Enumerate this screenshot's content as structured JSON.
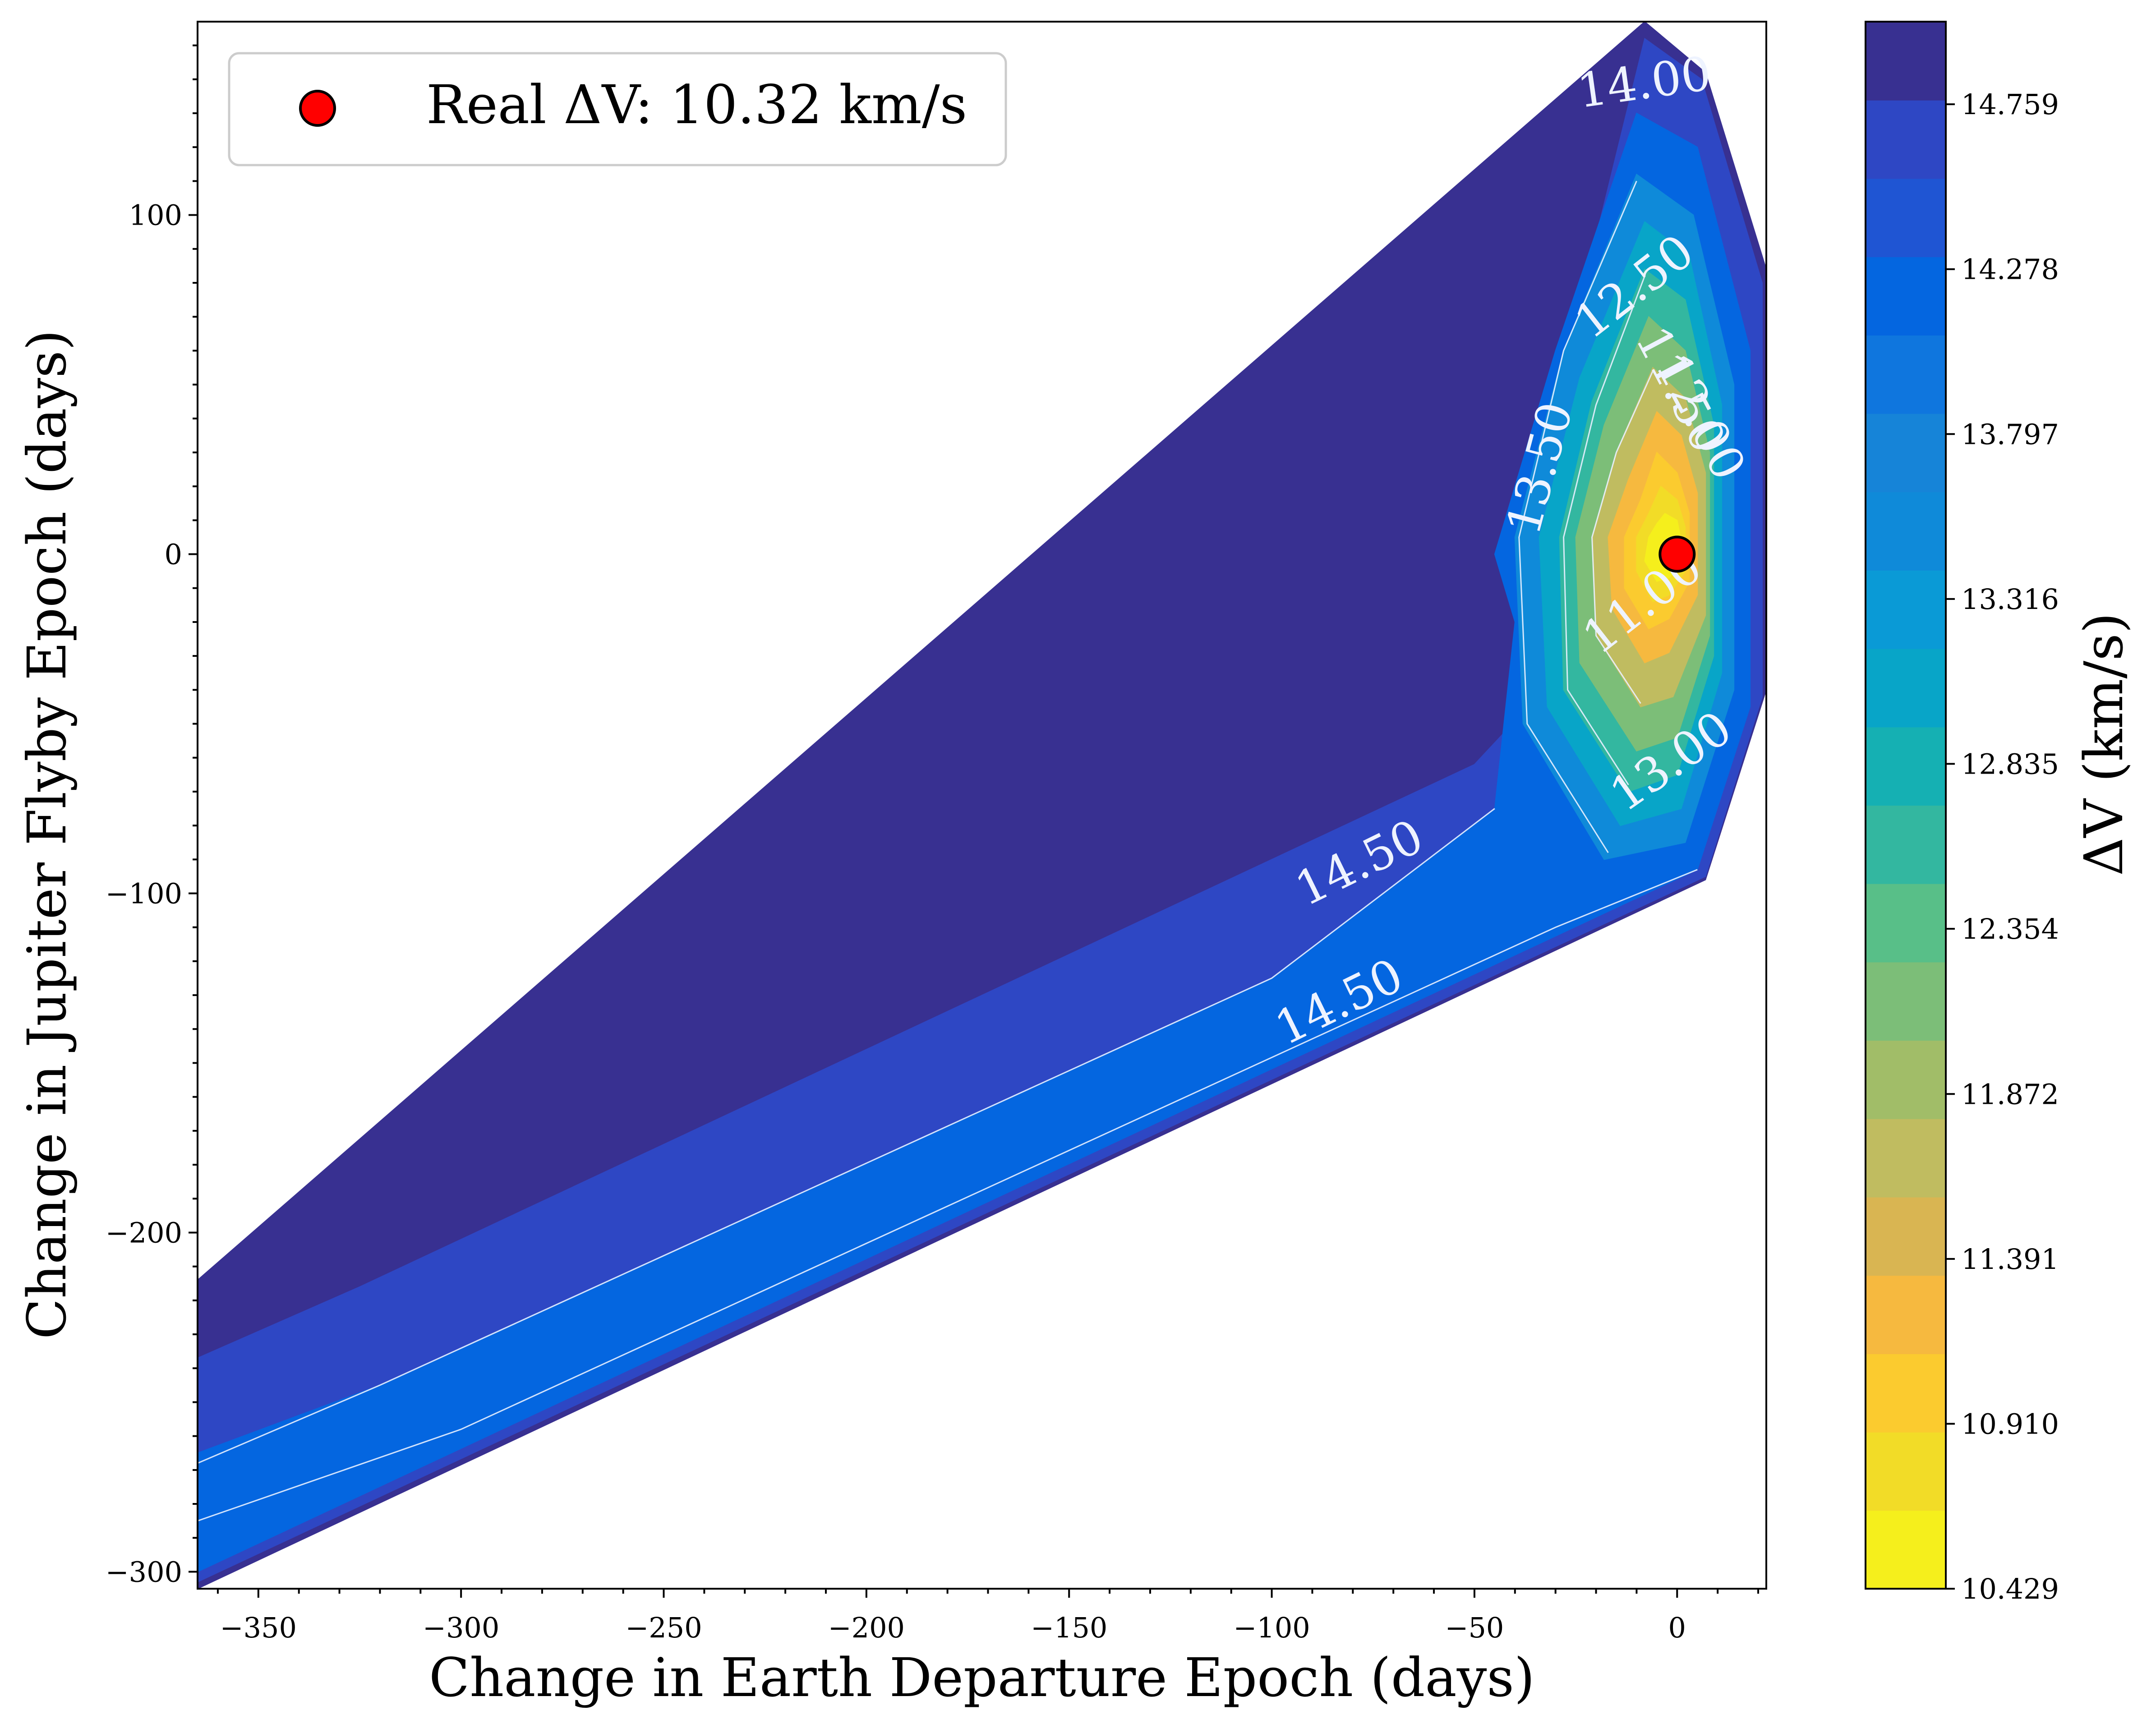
{
  "chart_data": {
    "type": "contour",
    "xlabel": "Change in Earth Departure Epoch (days)",
    "ylabel": "Change in Jupiter Flyby Epoch (days)",
    "colorbar_label": "ΔV (km/s)",
    "xlim": [
      -365,
      22
    ],
    "ylim": [
      -305,
      157
    ],
    "x_ticks": [
      -350,
      -300,
      -250,
      -200,
      -150,
      -100,
      -50,
      0
    ],
    "x_tick_labels": [
      "−350",
      "−300",
      "−250",
      "−200",
      "−150",
      "−100",
      "−50",
      "0"
    ],
    "y_ticks": [
      -300,
      -200,
      -100,
      0,
      100
    ],
    "y_tick_labels": [
      "−300",
      "−200",
      "−100",
      "0",
      "100"
    ],
    "colorbar_range": [
      10.429,
      15.0
    ],
    "colorbar_ticks": [
      10.429,
      10.91,
      11.391,
      11.872,
      12.354,
      12.835,
      13.316,
      13.797,
      14.278,
      14.759
    ],
    "colorbar_tick_labels": [
      "10.429",
      "10.910",
      "11.391",
      "11.872",
      "12.354",
      "12.835",
      "13.316",
      "13.797",
      "14.278",
      "14.759"
    ],
    "colormap": [
      "#f5ef1c",
      "#f2dc27",
      "#fbcb2f",
      "#f6b93f",
      "#d9b552",
      "#c0bc60",
      "#a1bd68",
      "#7cbe78",
      "#58bf88",
      "#33b7a0",
      "#15b0b3",
      "#08a5c8",
      "#0a9ad6",
      "#0f8ad9",
      "#1684d8",
      "#0f76de",
      "#0466e0",
      "#1f55d3",
      "#2e47c4",
      "#383091"
    ],
    "legend": {
      "label": "Real ΔV: 10.32 km/s",
      "position": "upper-left"
    },
    "real_point": {
      "x": 0,
      "y": 0,
      "value": 10.32,
      "color": "#ff0000"
    },
    "contour_levels": [
      "11.00",
      "11.50",
      "12.00",
      "12.50",
      "13.00",
      "13.50",
      "14.00",
      "14.50",
      "14.50"
    ],
    "regions": [
      {
        "level": 14.9,
        "color": "#383091",
        "polygon": [
          [
            -365,
            -305
          ],
          [
            -365,
            -214
          ],
          [
            -8,
            157
          ],
          [
            7,
            142
          ],
          [
            22,
            84
          ],
          [
            22,
            -40
          ],
          [
            7,
            -96
          ]
        ]
      },
      {
        "level": 14.7,
        "color": "#2e47c4",
        "polygon": [
          [
            -365,
            -303
          ],
          [
            -365,
            -237
          ],
          [
            -325,
            -216
          ],
          [
            -50,
            -62
          ],
          [
            -25,
            -30
          ],
          [
            -30,
            45
          ],
          [
            -8,
            152
          ],
          [
            6,
            140
          ],
          [
            21,
            80
          ],
          [
            21,
            -42
          ],
          [
            7,
            -95
          ]
        ]
      },
      {
        "level": 14.4,
        "color": "#0466e0",
        "polygon": [
          [
            -365,
            -300
          ],
          [
            -365,
            -265
          ],
          [
            -320,
            -245
          ],
          [
            -100,
            -125
          ],
          [
            -45,
            -75
          ],
          [
            -40,
            -20
          ],
          [
            -45,
            0
          ],
          [
            -30,
            60
          ],
          [
            -10,
            130
          ],
          [
            5,
            120
          ],
          [
            18,
            60
          ],
          [
            18,
            -45
          ],
          [
            5,
            -93
          ]
        ]
      },
      {
        "level": 14.1,
        "color": "#0f8ad9",
        "polygon": [
          [
            -18,
            -90
          ],
          [
            -38,
            -50
          ],
          [
            -40,
            5
          ],
          [
            -28,
            60
          ],
          [
            -10,
            112
          ],
          [
            4,
            100
          ],
          [
            14,
            50
          ],
          [
            14,
            -40
          ],
          [
            2,
            -85
          ]
        ]
      },
      {
        "level": 13.7,
        "color": "#08a5c8",
        "polygon": [
          [
            -14,
            -80
          ],
          [
            -32,
            -45
          ],
          [
            -34,
            5
          ],
          [
            -24,
            52
          ],
          [
            -8,
            98
          ],
          [
            3,
            88
          ],
          [
            11,
            44
          ],
          [
            11,
            -35
          ],
          [
            1,
            -75
          ]
        ]
      },
      {
        "level": 13.2,
        "color": "#33b7a0",
        "polygon": [
          [
            -12,
            -70
          ],
          [
            -28,
            -40
          ],
          [
            -29,
            5
          ],
          [
            -21,
            45
          ],
          [
            -8,
            84
          ],
          [
            2,
            75
          ],
          [
            9,
            38
          ],
          [
            9,
            -30
          ],
          [
            0,
            -65
          ]
        ]
      },
      {
        "level": 12.7,
        "color": "#7cbe78",
        "polygon": [
          [
            -10,
            -58
          ],
          [
            -24,
            -32
          ],
          [
            -25,
            5
          ],
          [
            -18,
            38
          ],
          [
            -7,
            70
          ],
          [
            2,
            60
          ],
          [
            8,
            30
          ],
          [
            8,
            -24
          ],
          [
            0,
            -54
          ]
        ]
      },
      {
        "level": 12.2,
        "color": "#c0bc60",
        "polygon": [
          [
            -9,
            -45
          ],
          [
            -20,
            -24
          ],
          [
            -21,
            5
          ],
          [
            -15,
            30
          ],
          [
            -6,
            55
          ],
          [
            2,
            46
          ],
          [
            7,
            24
          ],
          [
            7,
            -18
          ],
          [
            -1,
            -42
          ]
        ]
      },
      {
        "level": 11.7,
        "color": "#f6b93f",
        "polygon": [
          [
            -8,
            -32
          ],
          [
            -16,
            -16
          ],
          [
            -17,
            5
          ],
          [
            -12,
            22
          ],
          [
            -5,
            42
          ],
          [
            1,
            35
          ],
          [
            5,
            18
          ],
          [
            5,
            -12
          ],
          [
            -2,
            -29
          ]
        ]
      },
      {
        "level": 11.2,
        "color": "#fbcb2f",
        "polygon": [
          [
            -7,
            -22
          ],
          [
            -13,
            -10
          ],
          [
            -13,
            5
          ],
          [
            -9,
            16
          ],
          [
            -5,
            30
          ],
          [
            0,
            24
          ],
          [
            3,
            12
          ],
          [
            3,
            -8
          ],
          [
            -2,
            -19
          ]
        ]
      },
      {
        "level": 10.9,
        "color": "#f2dc27",
        "polygon": [
          [
            -6,
            -14
          ],
          [
            -10,
            -5
          ],
          [
            -10,
            5
          ],
          [
            -7,
            12
          ],
          [
            -4,
            20
          ],
          [
            0,
            16
          ],
          [
            2,
            8
          ],
          [
            2,
            -5
          ],
          [
            -2,
            -12
          ]
        ]
      },
      {
        "level": 10.6,
        "color": "#f5ef1c",
        "polygon": [
          [
            -5,
            -8
          ],
          [
            -8,
            -2
          ],
          [
            -7,
            5
          ],
          [
            -5,
            9
          ],
          [
            -3,
            12
          ],
          [
            0,
            10
          ],
          [
            1,
            4
          ],
          [
            0,
            -4
          ],
          [
            -2,
            -7
          ]
        ]
      }
    ],
    "lines": [
      {
        "points": [
          [
            -365,
            -268
          ],
          [
            -320,
            -245
          ],
          [
            -100,
            -125
          ],
          [
            -45,
            -75
          ]
        ]
      },
      {
        "points": [
          [
            -365,
            -285
          ],
          [
            -300,
            -258
          ],
          [
            -30,
            -110
          ],
          [
            5,
            -93
          ]
        ]
      },
      {
        "points": [
          [
            -17,
            -88
          ],
          [
            -37,
            -50
          ],
          [
            -39,
            5
          ],
          [
            -28,
            60
          ],
          [
            -10,
            110
          ]
        ]
      },
      {
        "points": [
          [
            -12,
            -68
          ],
          [
            -27,
            -40
          ],
          [
            -28,
            5
          ],
          [
            -20,
            44
          ],
          [
            -8,
            82
          ]
        ]
      },
      {
        "points": [
          [
            -9,
            -44
          ],
          [
            -20,
            -24
          ],
          [
            -21,
            5
          ],
          [
            -15,
            30
          ],
          [
            -6,
            54
          ]
        ]
      }
    ]
  }
}
